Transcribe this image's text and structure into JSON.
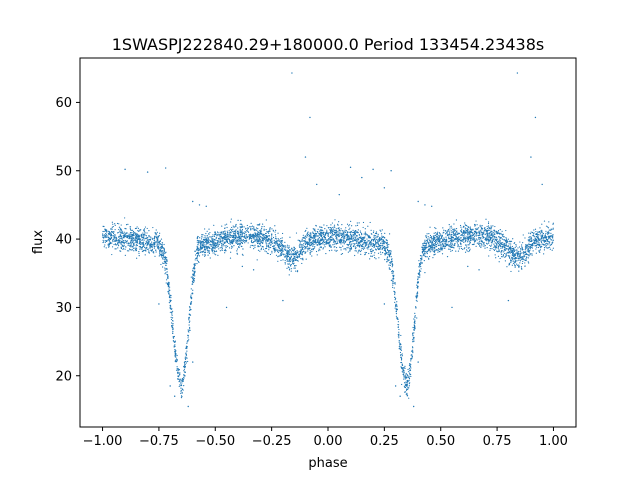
{
  "chart_data": {
    "type": "scatter",
    "title": "1SWASPJ222840.29+180000.0 Period 133454.23438s",
    "xlabel": "phase",
    "ylabel": "flux",
    "xlim": [
      -1.1,
      1.1
    ],
    "ylim": [
      12.5,
      66.5
    ],
    "x_ticks": [
      -1.0,
      -0.75,
      -0.5,
      -0.25,
      0.0,
      0.25,
      0.5,
      0.75,
      1.0
    ],
    "x_tick_labels": [
      "−1.00",
      "−0.75",
      "−0.50",
      "−0.25",
      "0.00",
      "0.25",
      "0.50",
      "0.75",
      "1.00"
    ],
    "y_ticks": [
      20,
      30,
      40,
      50,
      60
    ],
    "y_tick_labels": [
      "20",
      "30",
      "40",
      "50",
      "60"
    ],
    "grid": false,
    "marker_color": "#1f77b4",
    "series": [
      {
        "profile_phase": [
          0.0,
          0.05,
          0.1,
          0.15,
          0.2,
          0.25,
          0.28,
          0.3,
          0.32,
          0.34,
          0.35,
          0.36,
          0.38,
          0.4,
          0.42,
          0.45,
          0.5,
          0.55,
          0.6,
          0.65,
          0.7,
          0.75,
          0.8,
          0.83,
          0.85,
          0.87,
          0.9,
          0.95,
          1.0
        ],
        "profile_flux": [
          40.3,
          40.2,
          40.0,
          39.8,
          39.5,
          39.2,
          37.0,
          31.0,
          24.0,
          19.5,
          18.2,
          19.5,
          26.0,
          34.0,
          38.5,
          39.2,
          39.6,
          40.0,
          40.3,
          40.5,
          40.4,
          39.8,
          38.6,
          37.5,
          37.2,
          37.8,
          39.4,
          40.1,
          40.3
        ],
        "scatter_band": 0.9,
        "outliers": [
          {
            "phase": -0.9,
            "flux": 50.2
          },
          {
            "phase": -0.8,
            "flux": 49.8
          },
          {
            "phase": -0.72,
            "flux": 50.4
          },
          {
            "phase": -0.6,
            "flux": 45.5
          },
          {
            "phase": -0.57,
            "flux": 45.0
          },
          {
            "phase": -0.54,
            "flux": 44.8
          },
          {
            "phase": -0.38,
            "flux": 36.0
          },
          {
            "phase": -0.33,
            "flux": 35.5
          },
          {
            "phase": -0.2,
            "flux": 31.0
          },
          {
            "phase": -0.1,
            "flux": 52.0
          },
          {
            "phase": -0.08,
            "flux": 57.8
          },
          {
            "phase": -0.05,
            "flux": 48.0
          },
          {
            "phase": 0.05,
            "flux": 46.5
          },
          {
            "phase": 0.15,
            "flux": 49.0
          },
          {
            "phase": 0.25,
            "flux": 47.5
          },
          {
            "phase": 0.1,
            "flux": 50.5
          },
          {
            "phase": 0.2,
            "flux": 50.2
          },
          {
            "phase": 0.28,
            "flux": 50.0
          },
          {
            "phase": 0.4,
            "flux": 45.5
          },
          {
            "phase": 0.43,
            "flux": 45.0
          },
          {
            "phase": 0.46,
            "flux": 44.8
          },
          {
            "phase": 0.62,
            "flux": 36.0
          },
          {
            "phase": 0.67,
            "flux": 35.5
          },
          {
            "phase": 0.8,
            "flux": 31.0
          },
          {
            "phase": 0.9,
            "flux": 52.0
          },
          {
            "phase": 0.92,
            "flux": 57.8
          },
          {
            "phase": 0.95,
            "flux": 48.0
          },
          {
            "phase": 0.84,
            "flux": 64.3
          },
          {
            "phase": -0.16,
            "flux": 64.3
          },
          {
            "phase": -0.75,
            "flux": 30.5
          },
          {
            "phase": 0.25,
            "flux": 30.5
          },
          {
            "phase": -0.45,
            "flux": 30.0
          },
          {
            "phase": 0.55,
            "flux": 30.0
          },
          {
            "phase": -0.62,
            "flux": 15.5
          },
          {
            "phase": 0.38,
            "flux": 15.5
          },
          {
            "phase": -0.7,
            "flux": 18.5
          },
          {
            "phase": 0.3,
            "flux": 18.5
          },
          {
            "phase": -0.6,
            "flux": 22.0
          },
          {
            "phase": 0.4,
            "flux": 22.0
          },
          {
            "phase": -0.68,
            "flux": 17.0
          },
          {
            "phase": 0.32,
            "flux": 17.0
          }
        ]
      }
    ]
  }
}
